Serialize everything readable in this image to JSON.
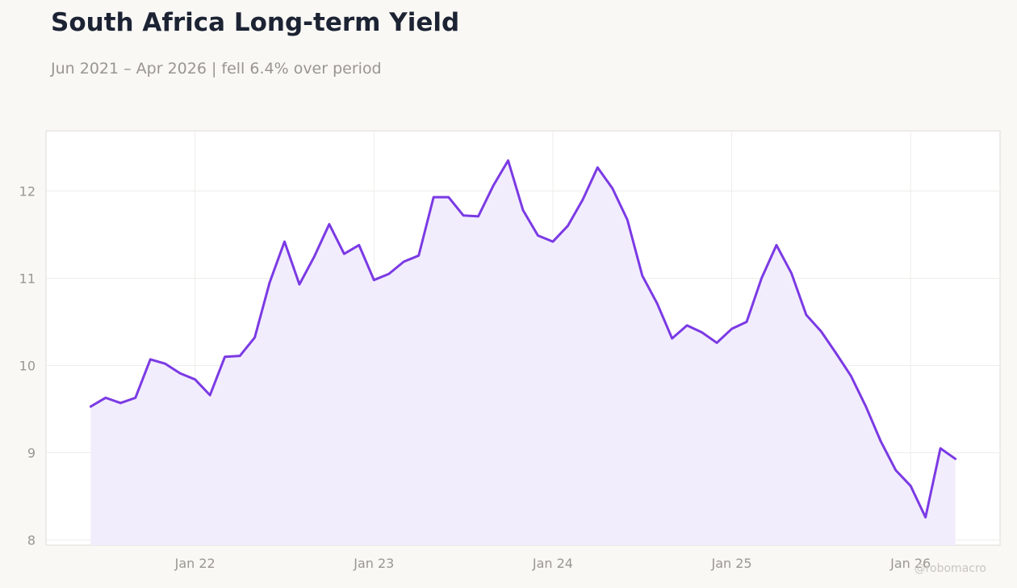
{
  "title": "South Africa Long-term Yield",
  "subtitle": "Jun 2021 – Apr 2026 | fell 6.4% over period",
  "watermark": "@robomacro",
  "colors": {
    "line": "#7b3ae4",
    "fill": "#f2edfd",
    "grid": "#eeedea",
    "frame": "#dddbd6"
  },
  "chart_data": {
    "type": "area",
    "x_start": "2021-06",
    "x_step": "month",
    "y": [
      9.53,
      9.63,
      9.57,
      9.63,
      10.07,
      10.02,
      9.91,
      9.84,
      9.66,
      10.1,
      10.11,
      10.32,
      10.95,
      11.42,
      10.93,
      11.25,
      11.62,
      11.28,
      11.38,
      10.98,
      11.05,
      11.19,
      11.26,
      11.93,
      11.93,
      11.72,
      11.71,
      12.06,
      12.35,
      11.78,
      11.49,
      11.42,
      11.6,
      11.9,
      12.27,
      12.03,
      11.67,
      11.03,
      10.71,
      10.31,
      10.46,
      10.38,
      10.26,
      10.42,
      10.5,
      11.0,
      11.38,
      11.06,
      10.58,
      10.39,
      10.14,
      9.88,
      9.53,
      9.13,
      8.8,
      8.62,
      8.26,
      9.05,
      8.93
    ],
    "x_ticks": [
      {
        "date": "2022-01",
        "label": "Jan 22"
      },
      {
        "date": "2023-01",
        "label": "Jan 23"
      },
      {
        "date": "2024-01",
        "label": "Jan 24"
      },
      {
        "date": "2025-01",
        "label": "Jan 25"
      },
      {
        "date": "2026-01",
        "label": "Jan 26"
      }
    ],
    "y_ticks": [
      8,
      9,
      10,
      11,
      12
    ],
    "ylim": [
      7.94,
      12.69
    ],
    "xlim": [
      "2021-03",
      "2026-07"
    ],
    "grid": true,
    "legend": "none"
  }
}
